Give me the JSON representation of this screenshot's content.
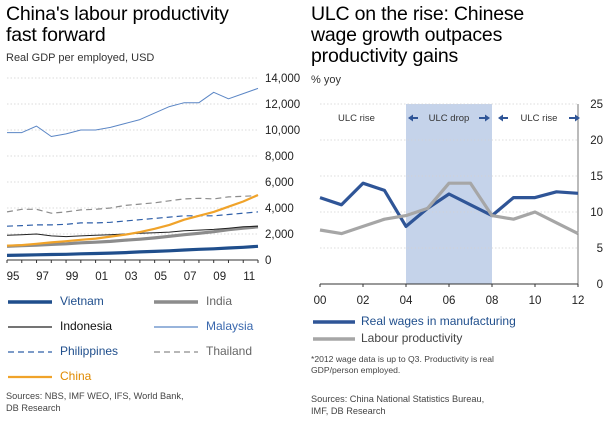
{
  "left": {
    "title_line1": "China's labour productivity",
    "title_line2": "fast forward",
    "subtitle": "Real GDP per employed, USD",
    "legend": [
      {
        "label": "Vietnam",
        "color": "#1F4E8C",
        "style": "solid"
      },
      {
        "label": "India",
        "color": "#8C8C8C",
        "style": "solid"
      },
      {
        "label": "Indonesia",
        "color": "#222222",
        "style": "solid"
      },
      {
        "label": "Malaysia",
        "color": "#5B86C5",
        "style": "solid"
      },
      {
        "label": "Philippines",
        "color": "#2F5FA8",
        "style": "dashed"
      },
      {
        "label": "Thailand",
        "color": "#8C8C8C",
        "style": "dashed"
      },
      {
        "label": "China",
        "color": "#F0A32A",
        "style": "solid"
      }
    ],
    "source_line1": "Sources:  NBS, IMF WEO, IFS, World Bank,",
    "source_line2": "DB Research"
  },
  "right": {
    "title_line1": "ULC on the rise: Chinese",
    "title_line2": "wage growth outpaces",
    "title_line3": "productivity gains",
    "subtitle": "% yoy",
    "annotations": {
      "ulc_rise_1": "ULC rise",
      "ulc_drop": "ULC drop",
      "ulc_rise_2": "ULC rise"
    },
    "legend": [
      {
        "label": "Real wages in manufacturing",
        "color": "#2F5597"
      },
      {
        "label": "Labour productivity",
        "color": "#A6A6A6"
      }
    ],
    "note_line1": "*2012 wage data is up to Q3. Productivity is real",
    "note_line2": "GDP/person employed.",
    "source_line1": "Sources: China National Statistics Bureau,",
    "source_line2": "IMF, DB Research"
  },
  "chart_data": [
    {
      "type": "line",
      "title": "China's labour productivity fast forward",
      "ylabel": "Real GDP per employed, USD",
      "x": [
        1995,
        1996,
        1997,
        1998,
        1999,
        2000,
        2001,
        2002,
        2003,
        2004,
        2005,
        2006,
        2007,
        2008,
        2009,
        2010,
        2011,
        2012
      ],
      "xticks": [
        "95",
        "97",
        "99",
        "01",
        "03",
        "05",
        "07",
        "09",
        "11"
      ],
      "xlim": [
        1995,
        2012
      ],
      "ylim": [
        0,
        14000
      ],
      "yticks": [
        "0",
        "2,000",
        "4,000",
        "6,000",
        "8,000",
        "10,000",
        "12,000",
        "14,000"
      ],
      "y_axis_position": "right",
      "series": [
        {
          "name": "Vietnam",
          "values": [
            350,
            380,
            400,
            420,
            440,
            480,
            500,
            530,
            570,
            620,
            660,
            710,
            770,
            820,
            860,
            920,
            980,
            1050
          ]
        },
        {
          "name": "India",
          "values": [
            1050,
            1100,
            1150,
            1200,
            1250,
            1320,
            1370,
            1430,
            1520,
            1600,
            1700,
            1820,
            1950,
            2050,
            2180,
            2330,
            2450,
            2550
          ]
        },
        {
          "name": "Indonesia",
          "values": [
            1900,
            1950,
            2000,
            1850,
            1800,
            1850,
            1900,
            1950,
            2000,
            2050,
            2100,
            2150,
            2250,
            2300,
            2350,
            2450,
            2550,
            2600
          ]
        },
        {
          "name": "Malaysia",
          "values": [
            9800,
            9800,
            10300,
            9500,
            9700,
            10000,
            10000,
            10200,
            10500,
            10800,
            11300,
            11800,
            12100,
            12100,
            12900,
            12400,
            12800,
            13200
          ]
        },
        {
          "name": "Philippines",
          "values": [
            2600,
            2650,
            2700,
            2700,
            2750,
            2850,
            2850,
            2900,
            3000,
            3100,
            3200,
            3300,
            3400,
            3400,
            3400,
            3500,
            3600,
            3700
          ]
        },
        {
          "name": "Thailand",
          "values": [
            3700,
            3900,
            3900,
            3600,
            3700,
            3850,
            3900,
            4000,
            4200,
            4300,
            4400,
            4550,
            4700,
            4750,
            4700,
            4850,
            4900,
            4950
          ]
        },
        {
          "name": "China",
          "values": [
            1100,
            1150,
            1250,
            1350,
            1450,
            1550,
            1650,
            1800,
            1950,
            2150,
            2400,
            2700,
            3100,
            3400,
            3700,
            4100,
            4500,
            5000
          ]
        }
      ],
      "legend": "bottom"
    },
    {
      "type": "line",
      "title": "ULC on the rise: Chinese wage growth outpaces productivity gains",
      "ylabel": "% yoy",
      "x": [
        2000,
        2001,
        2002,
        2003,
        2004,
        2005,
        2006,
        2007,
        2008,
        2009,
        2010,
        2011,
        2012
      ],
      "xticks": [
        "00",
        "02",
        "04",
        "06",
        "08",
        "10",
        "12"
      ],
      "xlim": [
        2000,
        2012
      ],
      "ylim": [
        0,
        25
      ],
      "yticks": [
        "0",
        "5",
        "10",
        "15",
        "20",
        "25"
      ],
      "y_axis_position": "right",
      "shaded_region": [
        2004,
        2008
      ],
      "series": [
        {
          "name": "Real wages in manufacturing",
          "values": [
            12.0,
            11.0,
            14.0,
            13.0,
            8.0,
            10.5,
            12.5,
            11.0,
            9.5,
            12.0,
            12.0,
            12.8,
            12.6
          ]
        },
        {
          "name": "Labour productivity",
          "values": [
            7.5,
            7.0,
            8.0,
            9.0,
            9.5,
            10.5,
            14.0,
            14.0,
            9.5,
            9.0,
            10.0,
            8.5,
            7.0
          ]
        }
      ],
      "legend": "bottom-left"
    }
  ]
}
